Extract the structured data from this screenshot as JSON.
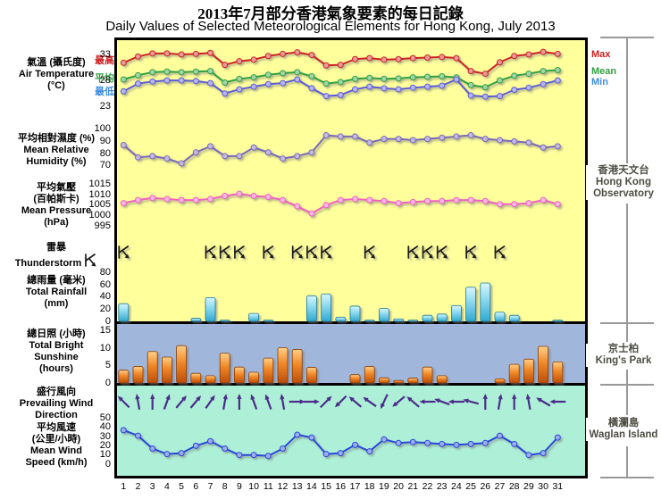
{
  "titles": {
    "zh": "2013年7月部分香港氣象要素的每日記錄",
    "en": "Daily Values of Selected Meteorological Elements for Hong Kong, July 2013"
  },
  "left_labels": {
    "temperature": [
      "氣溫 (攝氏度)",
      "Air Temperature",
      "(°C)"
    ],
    "humidity": [
      "平均相對濕度 (%)",
      "Mean Relative",
      "Humidity (%)"
    ],
    "pressure": [
      "平均氣壓",
      "(百帕斯卡)",
      "Mean Pressure",
      "(hPa)"
    ],
    "thunderstorm": [
      "雷暴",
      "Thunderstorm"
    ],
    "rainfall": [
      "總雨量 (毫米)",
      "Total Rainfall",
      "(mm)"
    ],
    "sunshine": [
      "總日照 (小時)",
      "Total Bright",
      "Sunshine",
      "(hours)"
    ],
    "wind_direction": [
      "盛行風向",
      "Prevailing Wind",
      "Direction"
    ],
    "wind_speed": [
      "平均風速",
      "(公里/小時)",
      "Mean Wind",
      "Speed (km/h)"
    ]
  },
  "series_labels": {
    "max_zh": "最高",
    "mean_zh": "平均",
    "min_zh": "最低",
    "max_en": "Max",
    "mean_en": "Mean",
    "min_en": "Min"
  },
  "stations": [
    {
      "lines": [
        "香港天文台",
        "Hong Kong",
        "Observatory"
      ]
    },
    {
      "lines": [
        "京士柏",
        "King's Park"
      ]
    },
    {
      "lines": [
        "橫瀾島",
        "Waglan Island"
      ]
    }
  ],
  "colors": {
    "panel_hko_bg": "#FFFF9C",
    "panel_kp_bg": "#A0B6DA",
    "panel_wi_bg": "#AEF0D7",
    "temp_max": "#CC2020",
    "temp_mean": "#2FA040",
    "temp_min": "#5C5CD6",
    "humidity": "#7A68B8",
    "pressure": "#F060C0",
    "rain_bar": "#55C4E4",
    "sun_bar": "#E87820",
    "wind_arrow": "#4B2D8A",
    "wind_speed": "#2848D8",
    "thunder_symbol": "#1a1a1a",
    "bracket": "#999999"
  },
  "chart_data": [
    {
      "id": "temperature",
      "type": "line",
      "title": "Air Temperature (°C)",
      "days": [
        1,
        2,
        3,
        4,
        5,
        6,
        7,
        8,
        9,
        10,
        11,
        12,
        13,
        14,
        15,
        16,
        17,
        18,
        19,
        20,
        21,
        22,
        23,
        24,
        25,
        26,
        27,
        28,
        29,
        30,
        31
      ],
      "ticks": [
        33,
        28,
        23
      ],
      "ylim": [
        21,
        35
      ],
      "legend_position": "line-ends",
      "series": [
        {
          "name": "Max (最高)",
          "color": "#CC2020",
          "values": [
            31.4,
            32.6,
            33.2,
            33.2,
            33.0,
            33.1,
            33.3,
            31.0,
            31.7,
            32.0,
            32.7,
            33.1,
            33.4,
            32.9,
            30.9,
            31.0,
            32.1,
            32.3,
            32.0,
            32.1,
            32.3,
            32.4,
            32.5,
            32.3,
            29.8,
            29.3,
            31.5,
            32.7,
            33.0,
            33.5,
            33.1
          ]
        },
        {
          "name": "Mean (平均)",
          "color": "#2FA040",
          "values": [
            28.2,
            29.0,
            29.6,
            29.7,
            29.6,
            29.7,
            29.8,
            27.6,
            28.3,
            28.6,
            29.1,
            29.4,
            29.6,
            28.8,
            27.4,
            27.7,
            28.3,
            28.5,
            28.3,
            28.4,
            28.6,
            28.7,
            28.8,
            28.6,
            27.1,
            26.7,
            28.0,
            28.9,
            29.3,
            29.8,
            30.0
          ]
        },
        {
          "name": "Min (最低)",
          "color": "#5C5CD6",
          "values": [
            25.9,
            27.4,
            27.8,
            28.0,
            28.0,
            27.9,
            27.5,
            25.5,
            26.3,
            26.8,
            27.3,
            27.5,
            28.2,
            26.5,
            25.0,
            25.2,
            26.3,
            26.8,
            26.5,
            26.3,
            26.6,
            26.8,
            27.0,
            28.2,
            25.1,
            24.9,
            25.0,
            26.2,
            26.6,
            27.3,
            28.0
          ]
        }
      ]
    },
    {
      "id": "humidity",
      "type": "line",
      "title": "Mean Relative Humidity (%)",
      "ticks": [
        100,
        90,
        80,
        70
      ],
      "ylim": [
        65,
        102
      ],
      "color": "#7A68B8",
      "values": [
        87,
        77,
        78,
        76,
        72,
        81,
        86,
        78,
        78,
        85,
        81,
        76,
        78,
        81,
        95,
        94,
        94,
        89,
        92,
        92,
        91,
        92,
        93,
        94,
        95,
        92,
        91,
        90,
        89,
        85,
        86
      ]
    },
    {
      "id": "pressure",
      "type": "line",
      "title": "Mean Pressure (hPa)",
      "ticks": [
        1015,
        1010,
        1005,
        1000,
        995
      ],
      "ylim": [
        993,
        1016
      ],
      "color": "#F060C0",
      "values": [
        1006,
        1007.5,
        1008.5,
        1008,
        1007.5,
        1007.5,
        1008,
        1009.5,
        1010.5,
        1009.5,
        1009,
        1007.5,
        1004.5,
        1001,
        1005,
        1007.5,
        1008,
        1007.5,
        1007,
        1006,
        1006.5,
        1007,
        1007,
        1007.5,
        1007.5,
        1007,
        1005.5,
        1005.5,
        1006,
        1007.5,
        1005.5
      ]
    },
    {
      "id": "thunderstorm",
      "type": "scatter",
      "title": "Thunderstorm occurrence (symbol shown on days with thunderstorm)",
      "marker": "thunderstorm-symbol",
      "days_with_thunderstorm": [
        1,
        7,
        8,
        9,
        11,
        13,
        14,
        15,
        18,
        21,
        22,
        23,
        25,
        27
      ]
    },
    {
      "id": "rainfall",
      "type": "bar",
      "title": "Total Rainfall (mm)",
      "ticks": [
        80,
        60,
        40,
        20,
        0
      ],
      "ylim": [
        0,
        85
      ],
      "color": "#55C4E4",
      "values": [
        29,
        0,
        0,
        0,
        0,
        5,
        39,
        2,
        0,
        13,
        2,
        0,
        0,
        42,
        45,
        7,
        25,
        2,
        21,
        4,
        2,
        10,
        12,
        26,
        56,
        63,
        15,
        10,
        0,
        0,
        2
      ]
    },
    {
      "id": "sunshine",
      "type": "bar",
      "title": "Total Bright Sunshine (hours)",
      "ticks": [
        15,
        10,
        5,
        0
      ],
      "ylim": [
        0,
        16
      ],
      "color": "#E87820",
      "values": [
        3.7,
        4.8,
        9.1,
        7.5,
        10.8,
        2.8,
        2.1,
        8.6,
        4.6,
        3.1,
        7.2,
        10.2,
        9.7,
        4.5,
        0,
        0,
        2.4,
        4.8,
        1.5,
        0.7,
        1.4,
        4.6,
        2.1,
        0,
        0,
        0,
        1.2,
        5.4,
        6.9,
        10.6,
        6.1
      ]
    },
    {
      "id": "wind_direction",
      "type": "scatter",
      "title": "Prevailing Wind Direction (arrow pointing direction, 0 = up/N, 90 = right/E)",
      "marker": "arrow",
      "angles_deg": [
        315,
        350,
        0,
        20,
        40,
        40,
        35,
        10,
        0,
        340,
        340,
        350,
        90,
        90,
        45,
        225,
        310,
        305,
        205,
        230,
        310,
        270,
        290,
        270,
        285,
        0,
        10,
        0,
        350,
        300,
        270
      ]
    },
    {
      "id": "wind_speed",
      "type": "line",
      "title": "Mean Wind Speed (km/h)",
      "ticks": [
        50,
        40,
        30,
        20,
        10,
        0
      ],
      "ylim": [
        0,
        55
      ],
      "color": "#2848D8",
      "values": [
        37,
        31,
        17,
        11,
        12,
        20,
        25,
        17,
        10,
        10,
        9,
        17,
        32,
        29,
        11,
        12,
        21,
        14,
        27,
        23,
        24,
        23,
        22,
        21,
        22,
        23,
        31,
        22,
        10,
        12,
        29
      ]
    }
  ]
}
